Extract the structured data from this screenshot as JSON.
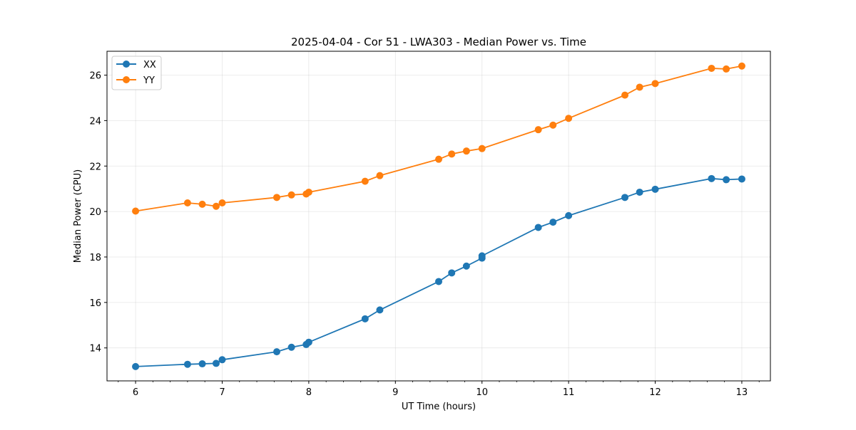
{
  "chart_data": {
    "type": "line",
    "title": "2025-04-04 - Cor 51 - LWA303 - Median Power vs. Time",
    "xlabel": "UT Time (hours)",
    "ylabel": "Median Power (CPU)",
    "xlim": [
      5.67,
      13.33
    ],
    "ylim": [
      12.55,
      27.05
    ],
    "xticks": [
      6,
      7,
      8,
      9,
      10,
      11,
      12,
      13
    ],
    "xminor_step": 0.2,
    "yticks": [
      14,
      16,
      18,
      20,
      22,
      24,
      26
    ],
    "grid": true,
    "legend_position": "top-left",
    "series": [
      {
        "name": "XX",
        "color": "#1f77b4",
        "x": [
          6.0,
          6.6,
          6.77,
          6.93,
          7.0,
          7.63,
          7.8,
          7.97,
          8.0,
          8.65,
          8.82,
          9.5,
          9.65,
          9.82,
          10.0,
          10.0,
          10.65,
          10.82,
          11.0,
          11.65,
          11.82,
          12.0,
          12.65,
          12.82,
          13.0
        ],
        "y": [
          13.18,
          13.28,
          13.3,
          13.32,
          13.48,
          13.83,
          14.03,
          14.15,
          14.25,
          15.28,
          15.67,
          16.92,
          17.3,
          17.6,
          17.95,
          18.05,
          19.3,
          19.53,
          19.82,
          20.62,
          20.85,
          20.98,
          21.45,
          21.4,
          21.43
        ]
      },
      {
        "name": "YY",
        "color": "#ff7f0e",
        "x": [
          6.0,
          6.6,
          6.77,
          6.93,
          7.0,
          7.63,
          7.8,
          7.97,
          8.0,
          8.65,
          8.82,
          9.5,
          9.65,
          9.82,
          10.0,
          10.65,
          10.82,
          11.0,
          11.65,
          11.82,
          12.0,
          12.65,
          12.82,
          13.0
        ],
        "y": [
          20.02,
          20.38,
          20.32,
          20.23,
          20.38,
          20.62,
          20.73,
          20.77,
          20.85,
          21.33,
          21.58,
          22.3,
          22.53,
          22.66,
          22.77,
          23.6,
          23.8,
          24.1,
          25.12,
          25.47,
          25.63,
          26.3,
          26.27,
          26.4
        ]
      }
    ]
  }
}
